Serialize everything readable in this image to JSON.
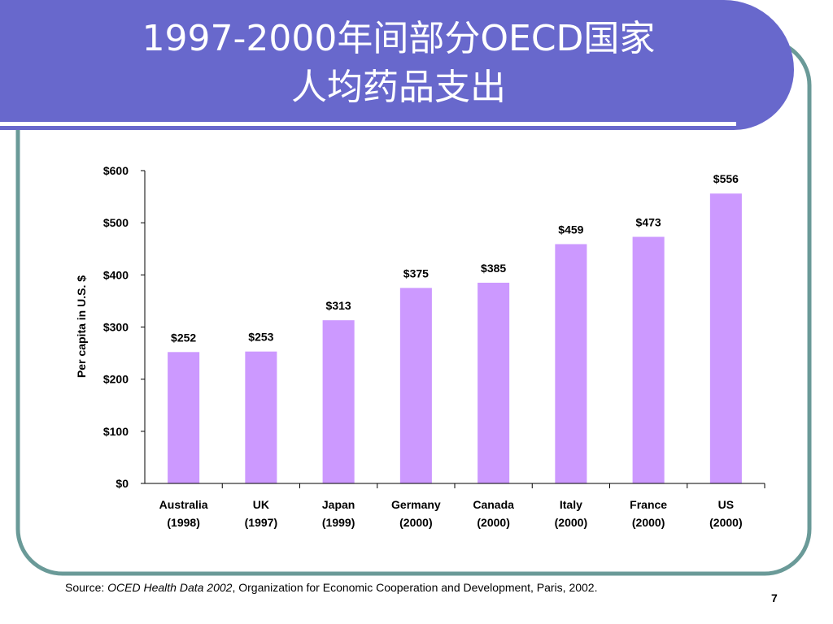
{
  "slide": {
    "title_line1": "1997-2000年间部分OECD国家",
    "title_line2": "人均药品支出",
    "page_number": "7",
    "source": {
      "prefix": "Source: ",
      "italic": "OCED Health Data 2002",
      "suffix": ", Organization for Economic Cooperation and Development, Paris, 2002."
    },
    "colors": {
      "title_band": "#6868cc",
      "border": "#6a9a98",
      "bar": "#cc99ff"
    }
  },
  "chart_data": {
    "type": "bar",
    "title": "",
    "xlabel": "",
    "ylabel": "Per capita in U.S. $",
    "categories": [
      {
        "name": "Australia",
        "year": "(1998)"
      },
      {
        "name": "UK",
        "year": "(1997)"
      },
      {
        "name": "Japan",
        "year": "(1999)"
      },
      {
        "name": "Germany",
        "year": "(2000)"
      },
      {
        "name": "Canada",
        "year": "(2000)"
      },
      {
        "name": "Italy",
        "year": "(2000)"
      },
      {
        "name": "France",
        "year": "(2000)"
      },
      {
        "name": "US",
        "year": "(2000)"
      }
    ],
    "values": [
      252,
      253,
      313,
      375,
      385,
      459,
      473,
      556
    ],
    "value_labels": [
      "$252",
      "$253",
      "$313",
      "$375",
      "$385",
      "$459",
      "$473",
      "$556"
    ],
    "ylim": [
      0,
      600
    ],
    "yticks": [
      0,
      100,
      200,
      300,
      400,
      500,
      600
    ],
    "ytick_labels": [
      "$0",
      "$100",
      "$200",
      "$300",
      "$400",
      "$500",
      "$600"
    ],
    "grid": false,
    "legend": "none"
  }
}
